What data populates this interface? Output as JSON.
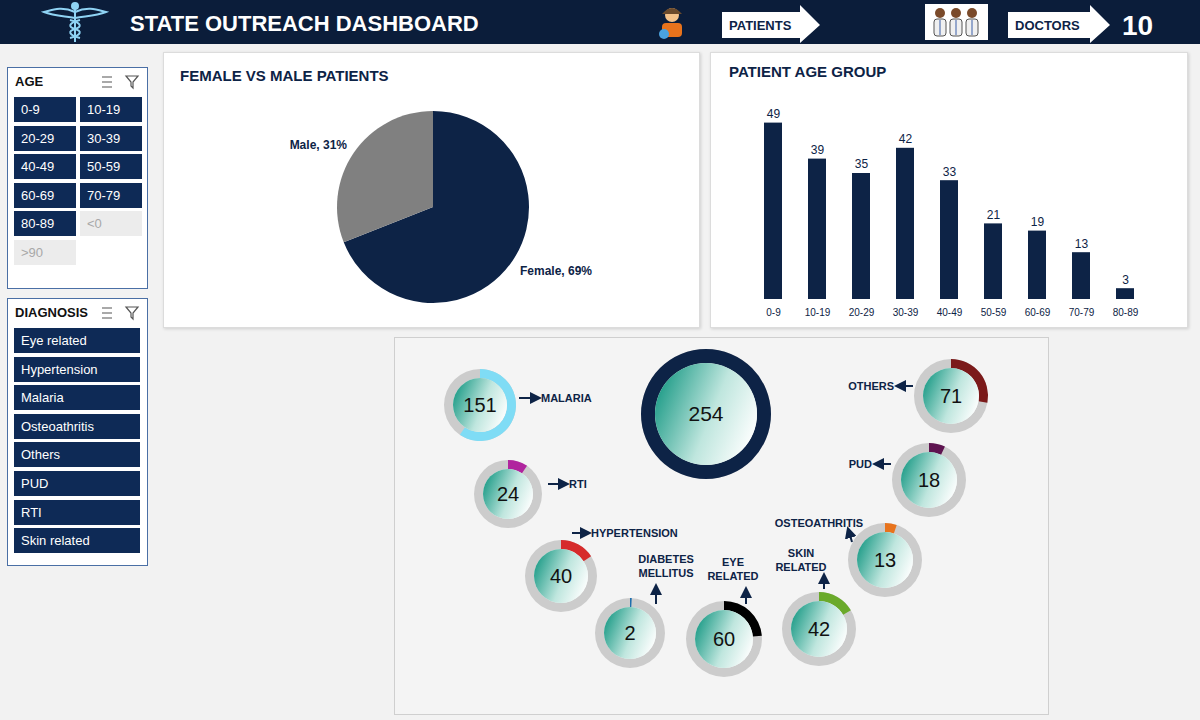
{
  "header": {
    "title": "STATE OUTREACH DASHBOARD",
    "patients_label": "PATIENTS",
    "doctors_label": "DOCTORS",
    "doctors": 10
  },
  "slicers": [
    {
      "title": "AGE",
      "items": [
        {
          "label": "0-9",
          "enabled": true
        },
        {
          "label": "10-19",
          "enabled": true
        },
        {
          "label": "20-29",
          "enabled": true
        },
        {
          "label": "30-39",
          "enabled": true
        },
        {
          "label": "40-49",
          "enabled": true
        },
        {
          "label": "50-59",
          "enabled": true
        },
        {
          "label": "60-69",
          "enabled": true
        },
        {
          "label": "70-79",
          "enabled": true
        },
        {
          "label": "80-89",
          "enabled": true
        },
        {
          "label": "<0",
          "enabled": false
        },
        {
          "label": ">90",
          "enabled": false
        }
      ]
    },
    {
      "title": "DIAGNOSIS",
      "items": [
        {
          "label": "Eye related",
          "enabled": true
        },
        {
          "label": "Hypertension",
          "enabled": true
        },
        {
          "label": "Malaria",
          "enabled": true
        },
        {
          "label": "Osteoathritis",
          "enabled": true
        },
        {
          "label": "Others",
          "enabled": true
        },
        {
          "label": "PUD",
          "enabled": true
        },
        {
          "label": "RTI",
          "enabled": true
        },
        {
          "label": "Skin related",
          "enabled": true
        }
      ]
    }
  ],
  "chart_data": [
    {
      "type": "pie",
      "title": "FEMALE VS MALE PATIENTS",
      "categories": [
        "Female",
        "Male"
      ],
      "values": [
        69,
        31
      ],
      "value_labels": [
        "Female, 69%",
        "Male, 31%"
      ],
      "colors": [
        "#0d2346",
        "#808080"
      ],
      "data_labels": true
    },
    {
      "type": "bar",
      "title": "PATIENT AGE GROUP",
      "categories": [
        "0-9",
        "10-19",
        "20-29",
        "30-39",
        "40-49",
        "50-59",
        "60-69",
        "70-79",
        "80-89"
      ],
      "values": [
        49,
        39,
        35,
        42,
        33,
        21,
        19,
        13,
        3
      ],
      "color": "#0d2346",
      "ylim": [
        0,
        50
      ],
      "data_labels": true,
      "tick_labels": "x"
    }
  ],
  "diagnosis_rings": {
    "total": 254,
    "total_color": "#0d2346",
    "items": [
      {
        "label": "MALARIA",
        "value": 151,
        "color": "#7fdcf5"
      },
      {
        "label": "RTI",
        "value": 24,
        "color": "#b0249e"
      },
      {
        "label": "HYPERTENSION",
        "value": 40,
        "color": "#d62b2b"
      },
      {
        "label": "DIABETES MELLITUS",
        "value": 2,
        "color": "#1f6fae"
      },
      {
        "label": "EYE RELATED",
        "value": 60,
        "color": "#000000"
      },
      {
        "label": "SKIN RELATED",
        "value": 42,
        "color": "#6aaa2a"
      },
      {
        "label": "OSTEOATHRITIS",
        "value": 13,
        "color": "#e8731c"
      },
      {
        "label": "PUD",
        "value": 18,
        "color": "#5e1450"
      },
      {
        "label": "OTHERS",
        "value": 71,
        "color": "#7b1a1a"
      }
    ]
  }
}
